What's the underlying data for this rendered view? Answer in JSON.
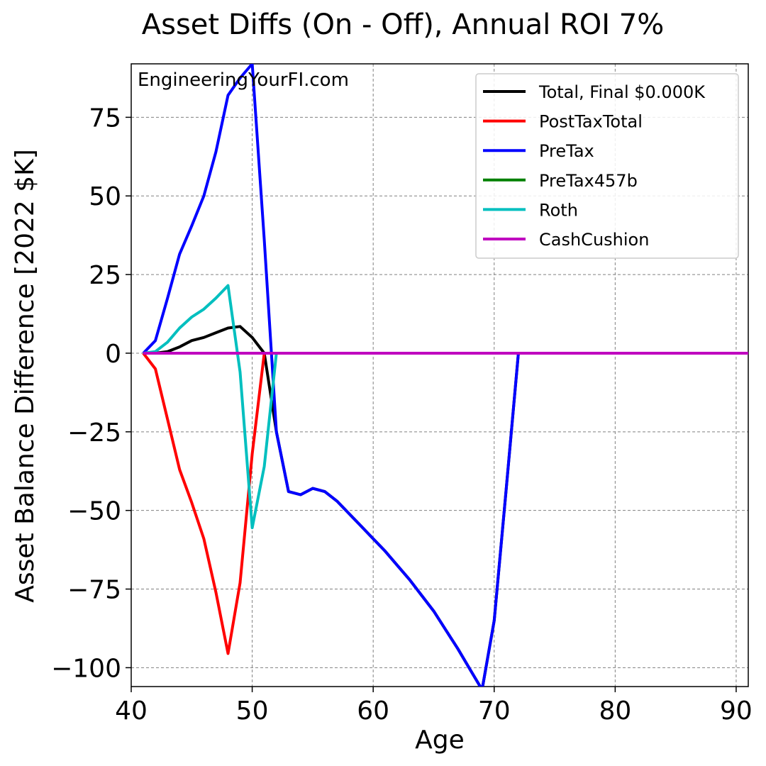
{
  "chart_data": {
    "type": "line",
    "title": "Asset Diffs (On - Off), Annual ROI 7%",
    "xlabel": "Age",
    "ylabel": "Asset Balance Difference [2022 $K]",
    "watermark": "EngineeringYourFI.com",
    "xlim": [
      40,
      91
    ],
    "ylim": [
      -106,
      92
    ],
    "xticks": [
      40,
      50,
      60,
      70,
      80,
      90
    ],
    "yticks": [
      -100,
      -75,
      -50,
      -25,
      0,
      25,
      50,
      75
    ],
    "ytick_labels": [
      "−100",
      "−75",
      "−50",
      "−25",
      "0",
      "25",
      "50",
      "75"
    ],
    "grid": true,
    "legend_position": "top-right",
    "series": [
      {
        "name": "Total, Final $0.000K",
        "color": "#000000",
        "points": [
          [
            41,
            0
          ],
          [
            42,
            0
          ],
          [
            43,
            0.5
          ],
          [
            44,
            2
          ],
          [
            45,
            4
          ],
          [
            46,
            5
          ],
          [
            47,
            6.5
          ],
          [
            48,
            8
          ],
          [
            49,
            8.5
          ],
          [
            50,
            5
          ],
          [
            51,
            0
          ],
          [
            52,
            -25
          ],
          [
            53,
            -44
          ],
          [
            54,
            -45
          ],
          [
            55,
            -43
          ],
          [
            56,
            -44
          ],
          [
            57,
            -47
          ],
          [
            58,
            -51
          ],
          [
            59,
            -55
          ],
          [
            60,
            -59
          ],
          [
            61,
            -63
          ],
          [
            62,
            -67.5
          ],
          [
            63,
            -72
          ],
          [
            64,
            -77
          ],
          [
            65,
            -82
          ],
          [
            66,
            -88
          ],
          [
            67,
            -94
          ],
          [
            68,
            -100.5
          ],
          [
            69,
            -107
          ],
          [
            70,
            -85
          ],
          [
            71,
            -43
          ],
          [
            72,
            0
          ],
          [
            91,
            0
          ]
        ]
      },
      {
        "name": "PostTaxTotal",
        "color": "#ff0000",
        "points": [
          [
            41,
            0
          ],
          [
            42,
            -5
          ],
          [
            43,
            -21
          ],
          [
            44,
            -37
          ],
          [
            45,
            -47.5
          ],
          [
            46,
            -59
          ],
          [
            47,
            -76
          ],
          [
            48,
            -95.5
          ],
          [
            49,
            -73
          ],
          [
            50,
            -32
          ],
          [
            51,
            0
          ],
          [
            91,
            0
          ]
        ]
      },
      {
        "name": "PreTax",
        "color": "#0000ff",
        "points": [
          [
            41,
            0
          ],
          [
            42,
            4
          ],
          [
            43,
            17.5
          ],
          [
            44,
            31.5
          ],
          [
            45,
            40.5
          ],
          [
            46,
            50
          ],
          [
            47,
            64
          ],
          [
            48,
            82
          ],
          [
            49,
            87.5
          ],
          [
            50,
            92
          ],
          [
            51,
            36
          ],
          [
            52,
            -25
          ],
          [
            53,
            -44
          ],
          [
            54,
            -45
          ],
          [
            55,
            -43
          ],
          [
            56,
            -44
          ],
          [
            57,
            -47
          ],
          [
            58,
            -51
          ],
          [
            59,
            -55
          ],
          [
            60,
            -59
          ],
          [
            61,
            -63
          ],
          [
            62,
            -67.5
          ],
          [
            63,
            -72
          ],
          [
            64,
            -77
          ],
          [
            65,
            -82
          ],
          [
            66,
            -88
          ],
          [
            67,
            -94
          ],
          [
            68,
            -100.5
          ],
          [
            69,
            -107
          ],
          [
            70,
            -85
          ],
          [
            71,
            -43
          ],
          [
            72,
            0
          ],
          [
            91,
            0
          ]
        ]
      },
      {
        "name": "PreTax457b",
        "color": "#008000",
        "points": [
          [
            41,
            0
          ],
          [
            91,
            0
          ]
        ]
      },
      {
        "name": "Roth",
        "color": "#00bfbf",
        "points": [
          [
            41,
            0
          ],
          [
            42,
            0.5
          ],
          [
            43,
            3.5
          ],
          [
            44,
            8
          ],
          [
            45,
            11.5
          ],
          [
            46,
            14
          ],
          [
            47,
            17.5
          ],
          [
            48,
            21.5
          ],
          [
            49,
            -6
          ],
          [
            50,
            -55.5
          ],
          [
            51,
            -36
          ],
          [
            52,
            0
          ],
          [
            91,
            0
          ]
        ]
      },
      {
        "name": "CashCushion",
        "color": "#bf00bf",
        "points": [
          [
            41,
            0
          ],
          [
            91,
            0
          ]
        ]
      }
    ]
  }
}
